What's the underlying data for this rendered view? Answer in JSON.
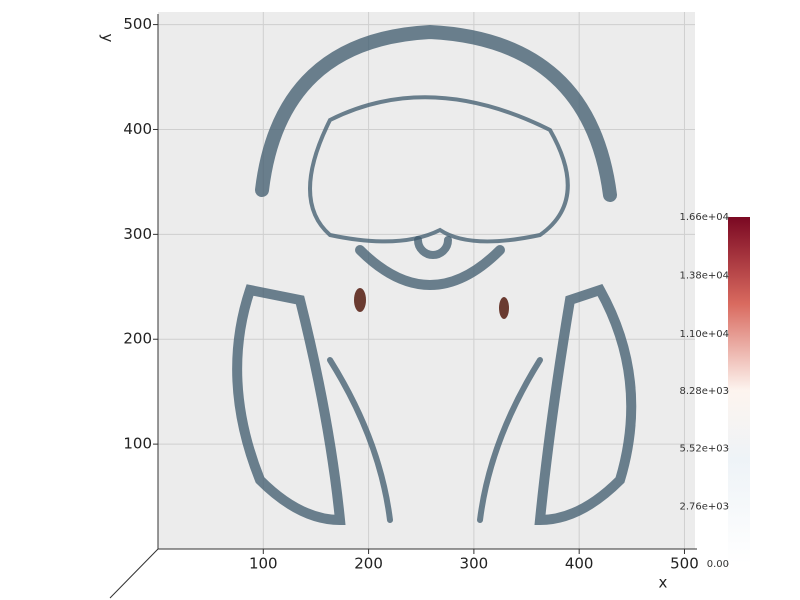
{
  "chart_data": {
    "type": "volume",
    "xlabel": "x",
    "ylabel": "y",
    "xlim": [
      0,
      510
    ],
    "ylim": [
      0,
      512
    ],
    "xticks": [
      100,
      200,
      300,
      400,
      500
    ],
    "yticks": [
      100,
      200,
      300,
      400,
      500
    ],
    "grid": true,
    "colorbar": {
      "lim": [
        0,
        16600
      ],
      "ticks": [
        {
          "value": 0,
          "label": "0.00"
        },
        {
          "value": 2760,
          "label": "2.76e+03"
        },
        {
          "value": 5520,
          "label": "5.52e+03"
        },
        {
          "value": 8280,
          "label": "8.28e+03"
        },
        {
          "value": 11000,
          "label": "1.10e+04"
        },
        {
          "value": 13800,
          "label": "1.38e+04"
        },
        {
          "value": 16600,
          "label": "1.66e+04"
        }
      ]
    }
  }
}
